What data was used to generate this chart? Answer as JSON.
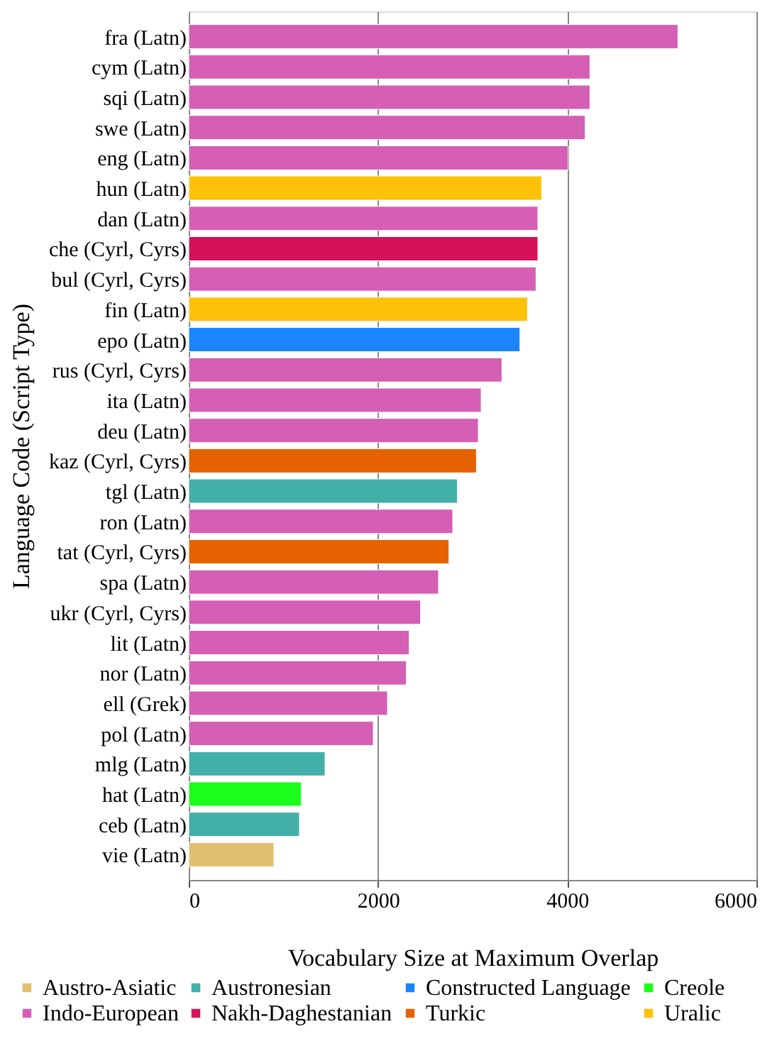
{
  "chart_data": {
    "type": "bar",
    "orientation": "horizontal",
    "xlabel": "Vocabulary Size at Maximum Overlap",
    "ylabel": "Language Code (Script Type)",
    "categories": [
      "fra (Latn)",
      "cym (Latn)",
      "sqi (Latn)",
      "swe (Latn)",
      "eng (Latn)",
      "hun (Latn)",
      "dan (Latn)",
      "che (Cyrl, Cyrs)",
      "bul (Cyrl, Cyrs)",
      "fin (Latn)",
      "epo (Latn)",
      "rus (Cyrl, Cyrs)",
      "ita (Latn)",
      "deu (Latn)",
      "kaz (Cyrl, Cyrs)",
      "tgl (Latn)",
      "ron (Latn)",
      "tat (Cyrl, Cyrs)",
      "spa (Latn)",
      "ukr (Cyrl, Cyrs)",
      "lit (Latn)",
      "nor (Latn)",
      "ell (Grek)",
      "pol (Latn)",
      "mlg (Latn)",
      "hat (Latn)",
      "ceb (Latn)",
      "vie (Latn)"
    ],
    "series": [
      {
        "name": "Austro-Asiatic",
        "color": "#e0c06e",
        "values": [
          null,
          null,
          null,
          null,
          null,
          null,
          null,
          null,
          null,
          null,
          null,
          null,
          null,
          null,
          null,
          null,
          null,
          null,
          null,
          null,
          null,
          null,
          null,
          null,
          null,
          null,
          null,
          900
        ]
      },
      {
        "name": "Austronesian",
        "color": "#42b0a8",
        "values": [
          null,
          null,
          null,
          null,
          null,
          null,
          null,
          null,
          null,
          null,
          null,
          null,
          null,
          null,
          null,
          2840,
          null,
          null,
          null,
          null,
          null,
          null,
          null,
          null,
          1440,
          null,
          1170,
          null
        ]
      },
      {
        "name": "Constructed Language",
        "color": "#1a85ff",
        "values": [
          null,
          null,
          null,
          null,
          null,
          null,
          null,
          null,
          null,
          null,
          3500,
          null,
          null,
          null,
          null,
          null,
          null,
          null,
          null,
          null,
          null,
          null,
          null,
          null,
          null,
          null,
          null,
          null
        ]
      },
      {
        "name": "Creole",
        "color": "#1aff1a",
        "values": [
          null,
          null,
          null,
          null,
          null,
          null,
          null,
          null,
          null,
          null,
          null,
          null,
          null,
          null,
          null,
          null,
          null,
          null,
          null,
          null,
          null,
          null,
          null,
          null,
          null,
          1190,
          null,
          null
        ]
      },
      {
        "name": "Indo-European",
        "color": "#d45fb5",
        "values": [
          5170,
          4240,
          4240,
          4190,
          4010,
          null,
          3690,
          null,
          3670,
          null,
          null,
          3310,
          3090,
          3060,
          null,
          null,
          2790,
          null,
          2640,
          2450,
          2330,
          2300,
          2100,
          1950,
          null,
          null,
          null,
          null
        ]
      },
      {
        "name": "Nakh-Daghestanian",
        "color": "#d41159",
        "values": [
          null,
          null,
          null,
          null,
          null,
          null,
          null,
          3690,
          null,
          null,
          null,
          null,
          null,
          null,
          null,
          null,
          null,
          null,
          null,
          null,
          null,
          null,
          null,
          null,
          null,
          null,
          null,
          null
        ]
      },
      {
        "name": "Turkic",
        "color": "#e66100",
        "values": [
          null,
          null,
          null,
          null,
          null,
          null,
          null,
          null,
          null,
          null,
          null,
          null,
          null,
          null,
          3040,
          null,
          null,
          2750,
          null,
          null,
          null,
          null,
          null,
          null,
          null,
          null,
          null,
          null
        ]
      },
      {
        "name": "Uralic",
        "color": "#fec10a",
        "values": [
          null,
          null,
          null,
          null,
          null,
          3730,
          null,
          null,
          null,
          3580,
          null,
          null,
          null,
          null,
          null,
          null,
          null,
          null,
          null,
          null,
          null,
          null,
          null,
          null,
          null,
          null,
          null,
          null
        ]
      }
    ],
    "xlim": [
      0,
      6000
    ],
    "xticks": [
      0,
      2000,
      4000,
      6000
    ],
    "grid": "x",
    "legend": "bottom"
  }
}
